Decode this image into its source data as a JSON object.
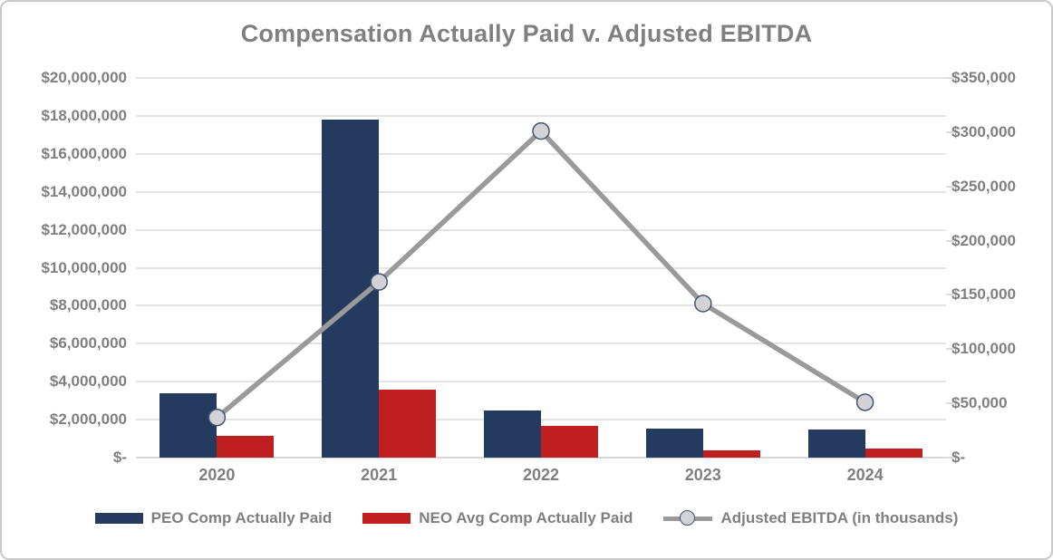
{
  "title": "Compensation Actually Paid v. Adjusted EBITDA",
  "colors": {
    "peo_bar": "#253a5f",
    "neo_bar": "#c01f1f",
    "ebitda_line": "#9a9a9a",
    "marker_fill": "#d3d3d7",
    "marker_stroke": "#44536e",
    "text_gray": "#7f7f7f",
    "title_gray": "#808080",
    "gridline": "#e4e4e4"
  },
  "chart_data": {
    "type": "bar",
    "subtype": "combo-bar-line-dual-axis",
    "title": "Compensation Actually Paid v. Adjusted EBITDA",
    "categories": [
      "2020",
      "2021",
      "2022",
      "2023",
      "2024"
    ],
    "series": [
      {
        "name": "PEO Comp Actually Paid",
        "type": "bar",
        "axis": "left",
        "color": "#253a5f",
        "values": [
          3400000,
          17800000,
          2500000,
          1550000,
          1480000
        ]
      },
      {
        "name": "NEO Avg Comp Actually Paid",
        "type": "bar",
        "axis": "left",
        "color": "#c01f1f",
        "values": [
          1150000,
          3600000,
          1650000,
          380000,
          500000
        ]
      },
      {
        "name": "Adjusted EBITDA (in thousands)",
        "type": "line",
        "axis": "right",
        "color": "#9a9a9a",
        "values": [
          37000,
          162000,
          301000,
          142000,
          51000
        ]
      }
    ],
    "left_axis": {
      "min": 0,
      "max": 20000000,
      "tick_step": 2000000,
      "tick_labels": [
        "$20,000,000",
        "$18,000,000",
        "$16,000,000",
        "$14,000,000",
        "$12,000,000",
        "$10,000,000",
        "$8,000,000",
        "$6,000,000",
        "$4,000,000",
        "$2,000,000",
        "$-"
      ]
    },
    "right_axis": {
      "min": 0,
      "max": 350000,
      "tick_step": 50000,
      "tick_labels": [
        "$350,000",
        "$300,000",
        "$250,000",
        "$200,000",
        "$150,000",
        "$100,000",
        "$50,000",
        "$-"
      ]
    },
    "grid": true,
    "legend_position": "bottom"
  }
}
